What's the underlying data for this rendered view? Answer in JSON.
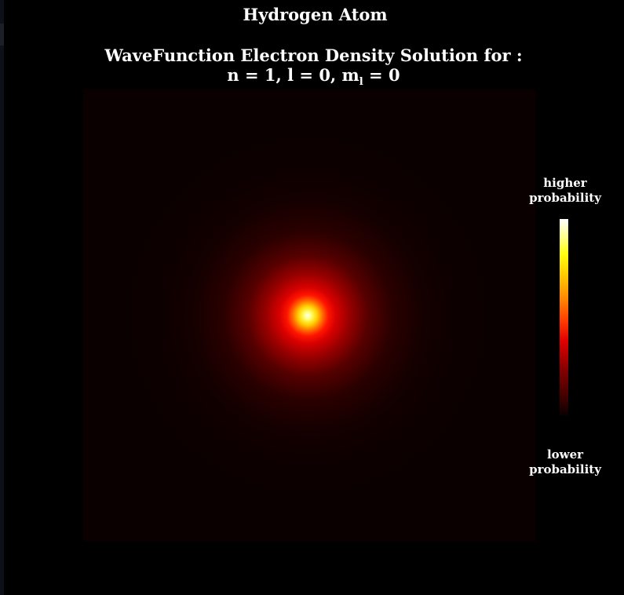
{
  "chart_data": {
    "type": "heatmap",
    "title": "Hydrogen Atom",
    "subtitle_line1": "WaveFunction Electron Density Solution for :",
    "subtitle_line2": "n = 1, l = 0, m",
    "subtitle_subscript": "l",
    "subtitle_line2_end": " = 0",
    "quantum_numbers": {
      "n": 1,
      "l": 0,
      "m_l": 0
    },
    "colormap": "hot",
    "colorbar": {
      "high_label": "higher\nprobability",
      "low_label": "lower\nprobability"
    },
    "axes_visible": false,
    "grid": false
  },
  "colors": {
    "background": "#000000",
    "plot_background": "#0b0000",
    "text": "#ffffff"
  }
}
